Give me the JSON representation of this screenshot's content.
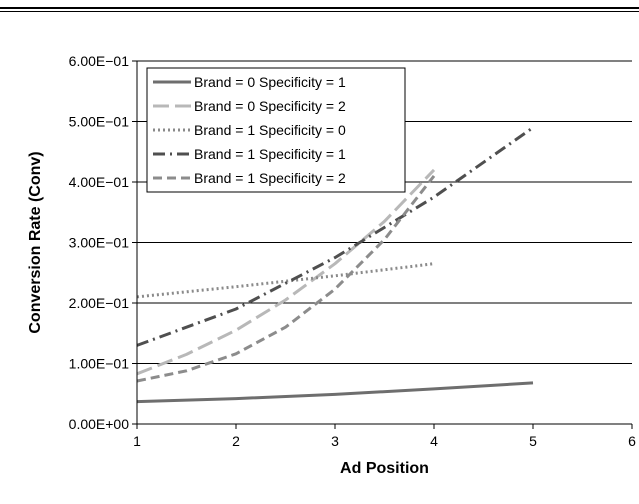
{
  "chart_data": {
    "type": "line",
    "xlabel": "Ad Position",
    "ylabel": "Conversion Rate (Conv)",
    "xlim": [
      1,
      6
    ],
    "ylim": [
      0,
      0.6
    ],
    "x_ticks": [
      "1",
      "2",
      "3",
      "4",
      "5",
      "6"
    ],
    "y_ticks": [
      "0.00E+00",
      "1.00E−01",
      "2.00E−01",
      "3.00E−01",
      "4.00E−01",
      "5.00E−01",
      "6.00E−01"
    ],
    "y_tick_values": [
      0,
      0.1,
      0.2,
      0.3,
      0.4,
      0.5,
      0.6
    ],
    "grid": true,
    "legend_position": "top-left",
    "series": [
      {
        "name": "Brand = 0 Specificity = 1",
        "color": "#6e6e6e",
        "dash": "solid",
        "x": [
          1,
          2,
          3,
          4,
          5
        ],
        "y": [
          0.037,
          0.042,
          0.049,
          0.058,
          0.068
        ]
      },
      {
        "name": "Brand = 0 Specificity = 2",
        "color": "#b8b8b8",
        "dash": "long-dash",
        "x": [
          1,
          1.5,
          2,
          2.5,
          3,
          3.5,
          4
        ],
        "y": [
          0.083,
          0.115,
          0.155,
          0.205,
          0.265,
          0.335,
          0.42
        ]
      },
      {
        "name": "Brand = 1 Specificity = 0",
        "color": "#8a8a8a",
        "dash": "dotted",
        "x": [
          1,
          2,
          3,
          4
        ],
        "y": [
          0.21,
          0.227,
          0.245,
          0.265
        ]
      },
      {
        "name": "Brand = 1 Specificity = 1",
        "color": "#4f4f4f",
        "dash": "dash-dot",
        "x": [
          1,
          2,
          3,
          4,
          5
        ],
        "y": [
          0.13,
          0.19,
          0.275,
          0.375,
          0.49
        ]
      },
      {
        "name": "Brand = 1 Specificity = 2",
        "color": "#8c8c8c",
        "dash": "dash",
        "x": [
          1,
          1.5,
          2,
          2.5,
          3,
          3.5,
          4
        ],
        "y": [
          0.071,
          0.088,
          0.116,
          0.16,
          0.223,
          0.305,
          0.41
        ]
      }
    ]
  }
}
